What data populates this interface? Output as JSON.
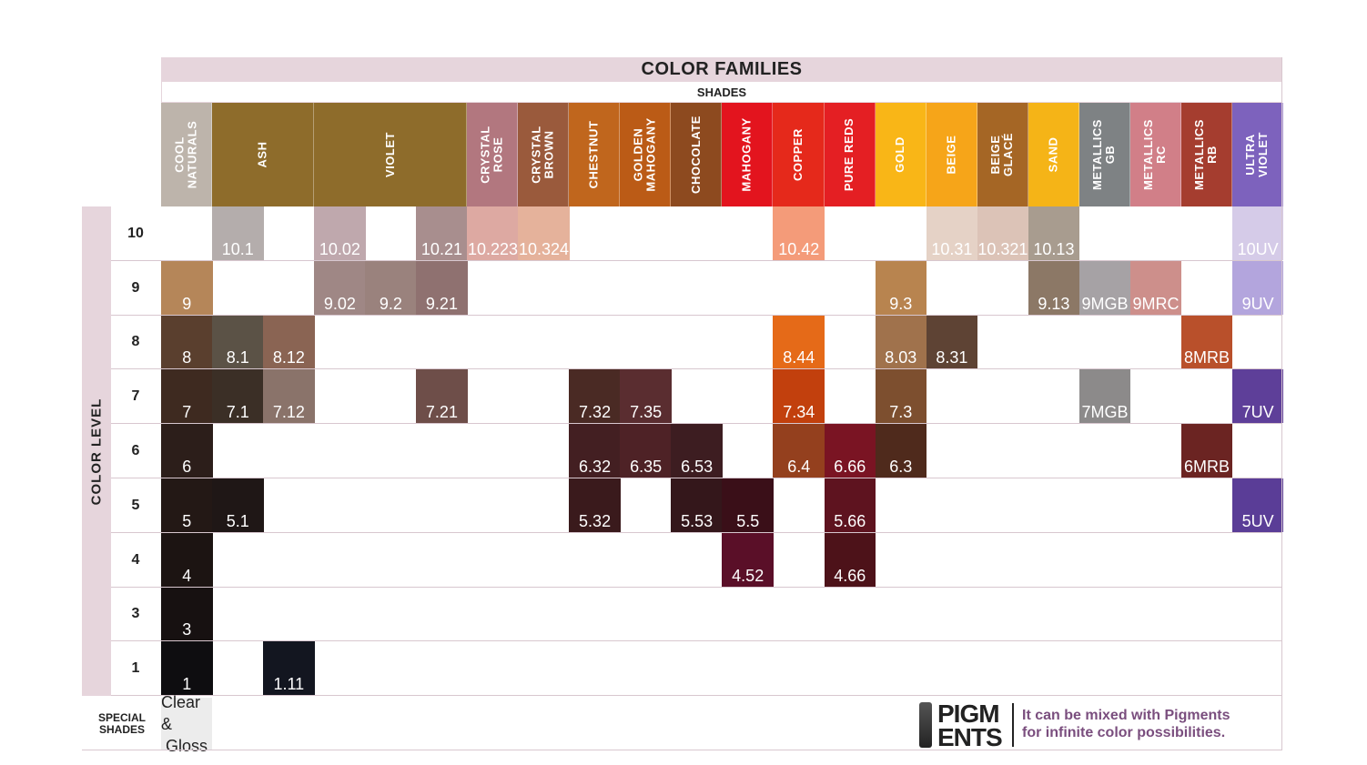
{
  "header": {
    "title": "COLOR FAMILIES",
    "subtitle": "SHADES"
  },
  "level_label": "COLOR LEVEL",
  "special_label": "SPECIAL\nSHADES",
  "special_shades": {
    "line1": "Clear &",
    "line2": "Gloss"
  },
  "pigments": {
    "logo_line1": "PIGM",
    "logo_line2": "ENTS",
    "tagline": "It can be mixed with Pigments\nfor infinite color possibilities."
  },
  "levels": [
    "10",
    "9",
    "8",
    "7",
    "6",
    "5",
    "4",
    "3",
    "1"
  ],
  "families": [
    {
      "label": "COOL\nNATURALS",
      "color": "#bdb4ab",
      "span": 1
    },
    {
      "label": "ASH",
      "color": "#8e6c2b",
      "span": 2
    },
    {
      "label": "VIOLET",
      "color": "#8e6c2b",
      "span": 3
    },
    {
      "label": "CRYSTAL\nROSE",
      "color": "#b2777f",
      "span": 1
    },
    {
      "label": "CRYSTAL\nBROWN",
      "color": "#9a5a3c",
      "span": 1
    },
    {
      "label": "CHESTNUT",
      "color": "#c0661d",
      "span": 1
    },
    {
      "label": "GOLDEN\nMAHOGANY",
      "color": "#bb5b16",
      "span": 1
    },
    {
      "label": "CHOCOLATE",
      "color": "#8d4a1f",
      "span": 1
    },
    {
      "label": "MAHOGANY",
      "color": "#e3141e",
      "span": 1
    },
    {
      "label": "COPPER",
      "color": "#e5291b",
      "span": 1
    },
    {
      "label": "PURE REDS",
      "color": "#e41f23",
      "span": 1
    },
    {
      "label": "GOLD",
      "color": "#f9b617",
      "span": 1
    },
    {
      "label": "BEIGE",
      "color": "#f6a519",
      "span": 1
    },
    {
      "label": "BEIGE\nGLACÉ",
      "color": "#a56625",
      "span": 1
    },
    {
      "label": "SAND",
      "color": "#f5b417",
      "span": 1
    },
    {
      "label": "METALLICS\nGB",
      "color": "#7e8284",
      "span": 1
    },
    {
      "label": "METALLICS\nRC",
      "color": "#d17f88",
      "span": 1
    },
    {
      "label": "METALLICS\nRB",
      "color": "#a53d2f",
      "span": 1
    },
    {
      "label": "ULTRA\nVIOLET",
      "color": "#7d62bd",
      "span": 1
    }
  ],
  "shades": [
    {
      "name": "10.1",
      "level": "10",
      "col": 1,
      "color": "#b4adac"
    },
    {
      "name": "10.02",
      "level": "10",
      "col": 3,
      "color": "#bfa8ad"
    },
    {
      "name": "10.21",
      "level": "10",
      "col": 5,
      "color": "#a88e8e"
    },
    {
      "name": "10.223",
      "level": "10",
      "col": 6,
      "color": "#dda9a2"
    },
    {
      "name": "10.324",
      "level": "10",
      "col": 7,
      "color": "#e5b29b"
    },
    {
      "name": "10.42",
      "level": "10",
      "col": 12,
      "color": "#f49b79"
    },
    {
      "name": "10.31",
      "level": "10",
      "col": 15,
      "color": "#e5d2c6"
    },
    {
      "name": "10.321",
      "level": "10",
      "col": 16,
      "color": "#dcc3b7"
    },
    {
      "name": "10.13",
      "level": "10",
      "col": 17,
      "color": "#a89c8f"
    },
    {
      "name": "10UV",
      "level": "10",
      "col": 21,
      "color": "#d5cbe8"
    },
    {
      "name": "9",
      "level": "9",
      "col": 0,
      "color": "#b58659"
    },
    {
      "name": "9.02",
      "level": "9",
      "col": 3,
      "color": "#9f8785"
    },
    {
      "name": "9.2",
      "level": "9",
      "col": 4,
      "color": "#9a827d"
    },
    {
      "name": "9.21",
      "level": "9",
      "col": 5,
      "color": "#8f7170"
    },
    {
      "name": "9.3",
      "level": "9",
      "col": 14,
      "color": "#b8844f"
    },
    {
      "name": "9.13",
      "level": "9",
      "col": 17,
      "color": "#8c7866"
    },
    {
      "name": "9MGB",
      "level": "9",
      "col": 18,
      "color": "#a6a2a5"
    },
    {
      "name": "9MRC",
      "level": "9",
      "col": 19,
      "color": "#cd8f8b"
    },
    {
      "name": "9UV",
      "level": "9",
      "col": 21,
      "color": "#b3a5dd"
    },
    {
      "name": "8",
      "level": "8",
      "col": 0,
      "color": "#5a3f2e"
    },
    {
      "name": "8.1",
      "level": "8",
      "col": 1,
      "color": "#5b5246"
    },
    {
      "name": "8.12",
      "level": "8",
      "col": 2,
      "color": "#8a6453"
    },
    {
      "name": "8.44",
      "level": "8",
      "col": 12,
      "color": "#e56a18"
    },
    {
      "name": "8.03",
      "level": "8",
      "col": 14,
      "color": "#a0724c"
    },
    {
      "name": "8.31",
      "level": "8",
      "col": 15,
      "color": "#5e4334"
    },
    {
      "name": "8MRB",
      "level": "8",
      "col": 20,
      "color": "#b9502b"
    },
    {
      "name": "7",
      "level": "7",
      "col": 0,
      "color": "#3e2a20"
    },
    {
      "name": "7.1",
      "level": "7",
      "col": 1,
      "color": "#3b2f26"
    },
    {
      "name": "7.12",
      "level": "7",
      "col": 2,
      "color": "#8a736a"
    },
    {
      "name": "7.21",
      "level": "7",
      "col": 5,
      "color": "#6e4e49"
    },
    {
      "name": "7.32",
      "level": "7",
      "col": 8,
      "color": "#4a2a24"
    },
    {
      "name": "7.35",
      "level": "7",
      "col": 9,
      "color": "#5a2d30"
    },
    {
      "name": "7.34",
      "level": "7",
      "col": 12,
      "color": "#c2400d"
    },
    {
      "name": "7.3",
      "level": "7",
      "col": 14,
      "color": "#7d4f2f"
    },
    {
      "name": "7MGB",
      "level": "7",
      "col": 18,
      "color": "#8c8a8a"
    },
    {
      "name": "7UV",
      "level": "7",
      "col": 21,
      "color": "#5e3f99"
    },
    {
      "name": "6",
      "level": "6",
      "col": 0,
      "color": "#2c1e1a"
    },
    {
      "name": "6.32",
      "level": "6",
      "col": 8,
      "color": "#431f22"
    },
    {
      "name": "6.35",
      "level": "6",
      "col": 9,
      "color": "#4e2226"
    },
    {
      "name": "6.53",
      "level": "6",
      "col": 10,
      "color": "#3d1d21"
    },
    {
      "name": "6.4",
      "level": "6",
      "col": 12,
      "color": "#94401e"
    },
    {
      "name": "6.66",
      "level": "6",
      "col": 13,
      "color": "#7a1423"
    },
    {
      "name": "6.3",
      "level": "6",
      "col": 14,
      "color": "#4f2a1c"
    },
    {
      "name": "6MRB",
      "level": "6",
      "col": 20,
      "color": "#6b2422"
    },
    {
      "name": "5",
      "level": "5",
      "col": 0,
      "color": "#231815"
    },
    {
      "name": "5.1",
      "level": "5",
      "col": 1,
      "color": "#1f1716"
    },
    {
      "name": "5.32",
      "level": "5",
      "col": 8,
      "color": "#3a1a1c"
    },
    {
      "name": "5.53",
      "level": "5",
      "col": 10,
      "color": "#34171b"
    },
    {
      "name": "5.5",
      "level": "5",
      "col": 11,
      "color": "#3a0f18"
    },
    {
      "name": "5.66",
      "level": "5",
      "col": 13,
      "color": "#5e131f"
    },
    {
      "name": "5UV",
      "level": "5",
      "col": 21,
      "color": "#5a3d97"
    },
    {
      "name": "4",
      "level": "4",
      "col": 0,
      "color": "#1c1412"
    },
    {
      "name": "4.52",
      "level": "4",
      "col": 11,
      "color": "#5a0f28"
    },
    {
      "name": "4.66",
      "level": "4",
      "col": 13,
      "color": "#4d1219"
    },
    {
      "name": "3",
      "level": "3",
      "col": 0,
      "color": "#171111"
    },
    {
      "name": "1",
      "level": "1",
      "col": 0,
      "color": "#0e0d10"
    },
    {
      "name": "1.11",
      "level": "1",
      "col": 2,
      "color": "#131620"
    }
  ]
}
